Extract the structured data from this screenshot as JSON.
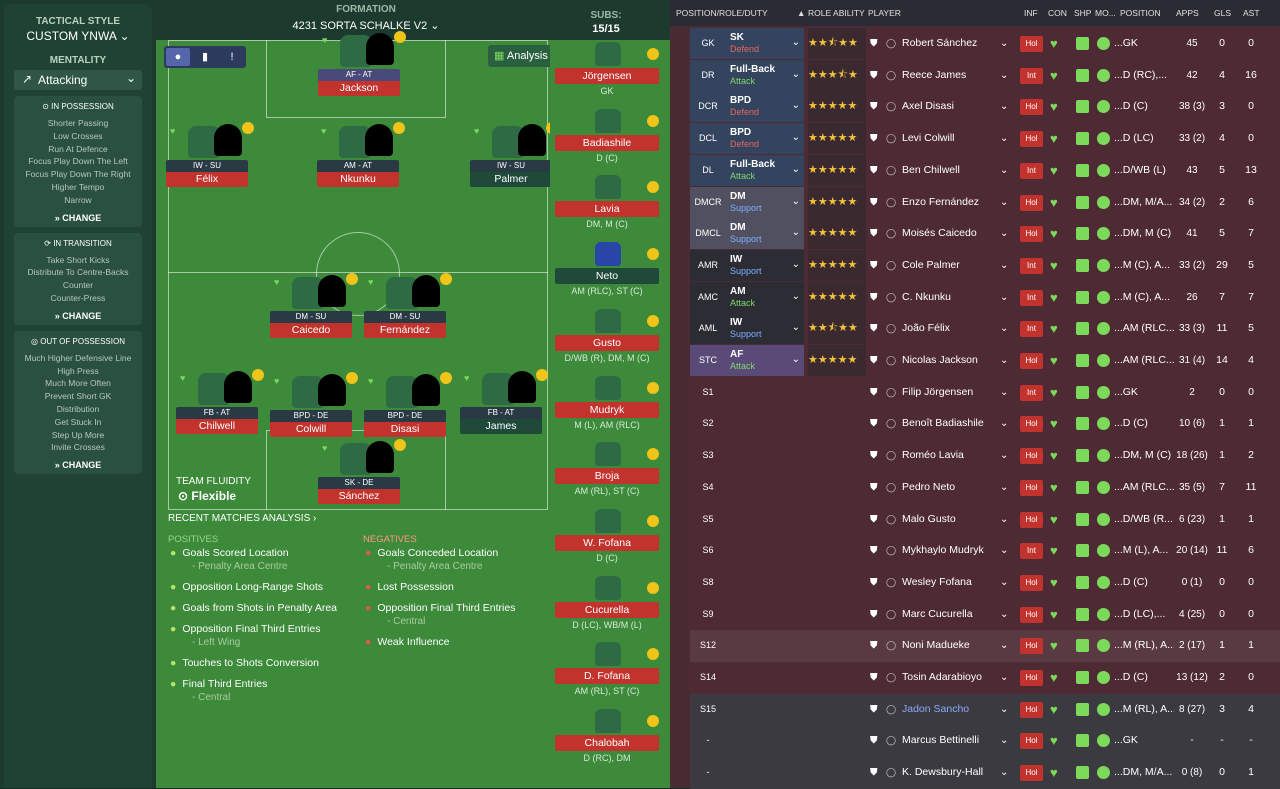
{
  "tactic": {
    "style_label": "TACTICAL STYLE",
    "style_value": "CUSTOM YNWA",
    "mentality_label": "MENTALITY",
    "mentality_value": "Attacking",
    "in_possession": {
      "title": "IN POSSESSION",
      "items": [
        "Shorter Passing",
        "Low Crosses",
        "Run At Defence",
        "Focus Play Down The Left",
        "Focus Play Down The Right",
        "Higher Tempo",
        "Narrow"
      ],
      "change": "CHANGE"
    },
    "in_transition": {
      "title": "IN TRANSITION",
      "items": [
        "Take Short Kicks",
        "Distribute To Centre-Backs",
        "Counter",
        "Counter-Press"
      ],
      "change": "CHANGE"
    },
    "out_possession": {
      "title": "OUT OF POSSESSION",
      "items": [
        "Much Higher Defensive Line",
        "High Press",
        "Much More Often",
        "Prevent Short GK",
        "Distribution",
        "Get Stuck In",
        "Step Up More",
        "Invite Crosses"
      ],
      "change": "CHANGE"
    }
  },
  "formation": {
    "label": "FORMATION",
    "value": "4231 SORTA SCHALKE V2",
    "analysis": "Analysis",
    "team_fluidity_label": "TEAM FLUIDITY",
    "team_fluidity_value": "Flexible",
    "players": [
      {
        "role": "AF - AT",
        "name": "Jackson"
      },
      {
        "role": "IW - SU",
        "name": "Félix"
      },
      {
        "role": "AM - AT",
        "name": "Nkunku"
      },
      {
        "role": "IW - SU",
        "name": "Palmer"
      },
      {
        "role": "DM - SU",
        "name": "Caicedo"
      },
      {
        "role": "DM - SU",
        "name": "Fernández"
      },
      {
        "role": "FB - AT",
        "name": "Chilwell"
      },
      {
        "role": "BPD - DE",
        "name": "Colwill"
      },
      {
        "role": "BPD - DE",
        "name": "Disasi"
      },
      {
        "role": "FB - AT",
        "name": "James"
      },
      {
        "role": "SK - DE",
        "name": "Sánchez"
      }
    ]
  },
  "subs": {
    "label": "SUBS:",
    "count": "15/15",
    "players": [
      {
        "name": "Jörgensen",
        "pos": "GK"
      },
      {
        "name": "Badiashile",
        "pos": "D (C)"
      },
      {
        "name": "Lavia",
        "pos": "DM, M (C)"
      },
      {
        "name": "Neto",
        "pos": "AM (RLC), ST (C)"
      },
      {
        "name": "Gusto",
        "pos": "D/WB (R), DM, M (C)"
      },
      {
        "name": "Mudryk",
        "pos": "M (L), AM (RLC)"
      },
      {
        "name": "Broja",
        "pos": "AM (RL), ST (C)"
      },
      {
        "name": "W. Fofana",
        "pos": "D (C)"
      },
      {
        "name": "Cucurella",
        "pos": "D (LC), WB/M (L)"
      },
      {
        "name": "D. Fofana",
        "pos": "AM (RL), ST (C)"
      },
      {
        "name": "Chalobah",
        "pos": "D (RC), DM"
      }
    ]
  },
  "analysis": {
    "title": "RECENT MATCHES ANALYSIS",
    "positives_label": "POSITIVES",
    "negatives_label": "NEGATIVES",
    "positives": [
      {
        "text": "Goals Scored Location",
        "sub": "- Penalty Area Centre"
      },
      {
        "text": "Opposition Long-Range Shots",
        "sub": ""
      },
      {
        "text": "Goals from Shots in Penalty Area",
        "sub": ""
      },
      {
        "text": "Opposition Final Third Entries",
        "sub": "- Left Wing"
      },
      {
        "text": "Touches to Shots Conversion",
        "sub": ""
      },
      {
        "text": "Final Third Entries",
        "sub": "- Central"
      }
    ],
    "negatives": [
      {
        "text": "Goals Conceded Location",
        "sub": "- Penalty Area Centre"
      },
      {
        "text": "Lost Possession",
        "sub": ""
      },
      {
        "text": "Opposition Final Third Entries",
        "sub": "- Central"
      },
      {
        "text": "Weak Influence",
        "sub": ""
      }
    ]
  },
  "table": {
    "headers": {
      "position": "POSITION/ROLE/DUTY",
      "role_ability": "ROLE ABILITY",
      "player": "PLAYER",
      "inf": "INF",
      "con": "CON",
      "shp": "SHP",
      "mo": "MO...",
      "pos": "POSITION",
      "apps": "APPS",
      "gls": "GLS",
      "ast": "AST"
    },
    "rows": [
      {
        "slot": "GK",
        "role": "SK",
        "duty": "Defend",
        "stars": 2.5,
        "player": "Robert Sánchez",
        "inf": "Hol",
        "position": "...GK",
        "apps": "45",
        "gls": "0",
        "ast": "0"
      },
      {
        "slot": "DR",
        "role": "Full-Back",
        "duty": "Attack",
        "stars": 3.5,
        "player": "Reece James",
        "inf": "Int",
        "position": "...D (RC),...",
        "apps": "42",
        "gls": "4",
        "ast": "16"
      },
      {
        "slot": "DCR",
        "role": "BPD",
        "duty": "Defend",
        "stars": 3,
        "player": "Axel Disasi",
        "inf": "Hol",
        "position": "...D (C)",
        "apps": "38 (3)",
        "gls": "3",
        "ast": "0"
      },
      {
        "slot": "DCL",
        "role": "BPD",
        "duty": "Defend",
        "stars": 3,
        "player": "Levi Colwill",
        "inf": "Hol",
        "position": "...D (LC)",
        "apps": "33 (2)",
        "gls": "4",
        "ast": "0"
      },
      {
        "slot": "DL",
        "role": "Full-Back",
        "duty": "Attack",
        "stars": 4,
        "player": "Ben Chilwell",
        "inf": "Int",
        "position": "...D/WB (L)",
        "apps": "43",
        "gls": "5",
        "ast": "13"
      },
      {
        "slot": "DMCR",
        "role": "DM",
        "duty": "Support",
        "stars": 3,
        "player": "Enzo Fernández",
        "inf": "Hol",
        "position": "...DM, M/A...",
        "apps": "34 (2)",
        "gls": "2",
        "ast": "6"
      },
      {
        "slot": "DMCL",
        "role": "DM",
        "duty": "Support",
        "stars": 4,
        "player": "Moisés Caicedo",
        "inf": "Hol",
        "position": "...DM, M (C)",
        "apps": "41",
        "gls": "5",
        "ast": "7"
      },
      {
        "slot": "AMR",
        "role": "IW",
        "duty": "Support",
        "stars": 4,
        "player": "Cole Palmer",
        "inf": "Int",
        "position": "...M (C), A...",
        "apps": "33 (2)",
        "gls": "29",
        "ast": "5"
      },
      {
        "slot": "AMC",
        "role": "AM",
        "duty": "Attack",
        "stars": 4,
        "player": "C. Nkunku",
        "inf": "Int",
        "position": "...M (C), A...",
        "apps": "26",
        "gls": "7",
        "ast": "7"
      },
      {
        "slot": "AML",
        "role": "IW",
        "duty": "Support",
        "stars": 2.5,
        "player": "João Félix",
        "inf": "Int",
        "position": "...AM (RLC...",
        "apps": "33 (3)",
        "gls": "11",
        "ast": "5"
      },
      {
        "slot": "STC",
        "role": "AF",
        "duty": "Attack",
        "stars": 3,
        "player": "Nicolas Jackson",
        "inf": "Hol",
        "position": "...AM (RLC...",
        "apps": "31 (4)",
        "gls": "14",
        "ast": "4"
      },
      {
        "slot": "S1",
        "role": "",
        "duty": "",
        "stars": 0,
        "player": "Filip Jörgensen",
        "inf": "Int",
        "position": "...GK",
        "apps": "2",
        "gls": "0",
        "ast": "0"
      },
      {
        "slot": "S2",
        "role": "",
        "duty": "",
        "stars": 0,
        "player": "Benoît Badiashile",
        "inf": "Hol",
        "position": "...D (C)",
        "apps": "10 (6)",
        "gls": "1",
        "ast": "1"
      },
      {
        "slot": "S3",
        "role": "",
        "duty": "",
        "stars": 0,
        "player": "Roméo Lavia",
        "inf": "Hol",
        "position": "...DM, M (C)",
        "apps": "18 (26)",
        "gls": "1",
        "ast": "2"
      },
      {
        "slot": "S4",
        "role": "",
        "duty": "",
        "stars": 0,
        "player": "Pedro Neto",
        "inf": "Hol",
        "position": "...AM (RLC...",
        "apps": "35 (5)",
        "gls": "7",
        "ast": "11"
      },
      {
        "slot": "S5",
        "role": "",
        "duty": "",
        "stars": 0,
        "player": "Malo Gusto",
        "inf": "Hol",
        "position": "...D/WB (R...",
        "apps": "6 (23)",
        "gls": "1",
        "ast": "1"
      },
      {
        "slot": "S6",
        "role": "",
        "duty": "",
        "stars": 0,
        "player": "Mykhaylo Mudryk",
        "inf": "Int",
        "position": "...M (L), A...",
        "apps": "20 (14)",
        "gls": "11",
        "ast": "6"
      },
      {
        "slot": "S8",
        "role": "",
        "duty": "",
        "stars": 0,
        "player": "Wesley Fofana",
        "inf": "Hol",
        "position": "...D (C)",
        "apps": "0 (1)",
        "gls": "0",
        "ast": "0"
      },
      {
        "slot": "S9",
        "role": "",
        "duty": "",
        "stars": 0,
        "player": "Marc Cucurella",
        "inf": "Hol",
        "position": "...D (LC),...",
        "apps": "4 (25)",
        "gls": "0",
        "ast": "0"
      },
      {
        "slot": "S12",
        "role": "",
        "duty": "",
        "stars": 0,
        "player": "Noni Madueke",
        "inf": "Hol",
        "position": "...M (RL), A...",
        "apps": "2 (17)",
        "gls": "1",
        "ast": "1"
      },
      {
        "slot": "S14",
        "role": "",
        "duty": "",
        "stars": 0,
        "player": "Tosin Adarabioyo",
        "inf": "Hol",
        "position": "...D (C)",
        "apps": "13 (12)",
        "gls": "2",
        "ast": "0"
      },
      {
        "slot": "S15",
        "role": "",
        "duty": "",
        "stars": 0,
        "player": "Jadon Sancho",
        "inf": "Hol",
        "position": "...M (RL), A...",
        "apps": "8 (27)",
        "gls": "3",
        "ast": "4"
      },
      {
        "slot": "-",
        "role": "",
        "duty": "",
        "stars": 0,
        "player": "Marcus Bettinelli",
        "inf": "Hol",
        "position": "...GK",
        "apps": "-",
        "gls": "-",
        "ast": "-"
      },
      {
        "slot": "-",
        "role": "",
        "duty": "",
        "stars": 0,
        "player": "K. Dewsbury-Hall",
        "inf": "Hol",
        "position": "...DM, M/A...",
        "apps": "0 (8)",
        "gls": "0",
        "ast": "1"
      }
    ]
  },
  "colors": {
    "pitch": "#3c8a3a",
    "accent_red": "#c2332e",
    "panel_dark": "#1c3a2d",
    "defend": "#e06a5a",
    "support": "#7fb0ff",
    "attack": "#7dd96a"
  }
}
